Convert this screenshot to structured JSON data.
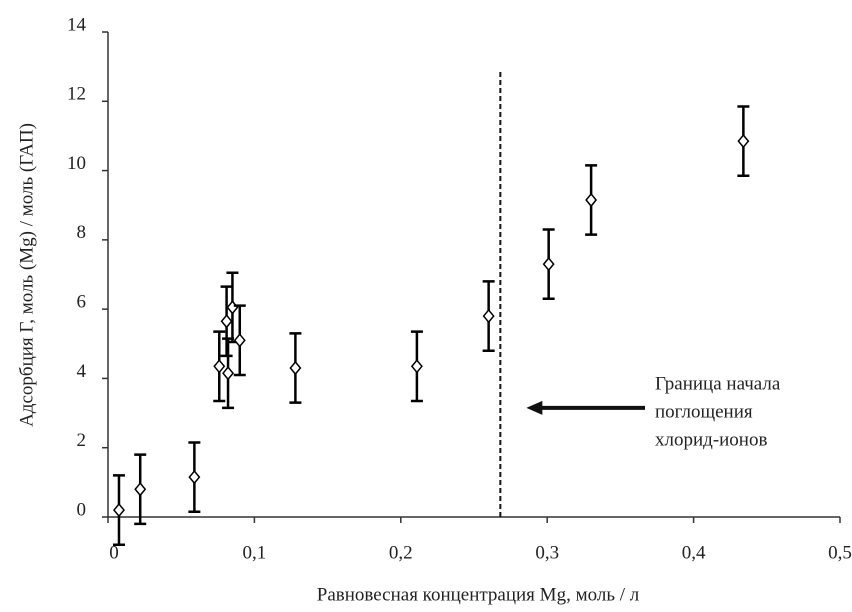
{
  "chart_data": {
    "type": "scatter",
    "xlabel": "Равновесная концентрация Mg, моль / л",
    "ylabel": "Адсорбция Г, моль (Mg) / моль (ГАП)",
    "x": [
      0.0075,
      0.022,
      0.059,
      0.076,
      0.082,
      0.081,
      0.085,
      0.09,
      0.128,
      0.211,
      0.26,
      0.301,
      0.33,
      0.434
    ],
    "values": [
      0.2,
      0.8,
      1.15,
      4.35,
      4.15,
      5.65,
      6.05,
      5.1,
      4.3,
      4.35,
      5.8,
      7.3,
      9.15,
      10.85
    ],
    "errors": [
      1,
      1,
      1,
      1,
      1,
      1,
      1,
      1,
      1,
      1,
      1,
      1,
      1,
      1
    ],
    "color": "#000000",
    "xlim": [
      0,
      0.5
    ],
    "ylim": [
      0,
      14
    ],
    "xticks": [
      0,
      {
        "value": 0.1,
        "label": "0,1"
      },
      {
        "value": 0.2,
        "label": "0,2"
      },
      {
        "value": 0.3,
        "label": "0,3"
      },
      {
        "value": 0.4,
        "label": "0,4"
      },
      {
        "value": 0.5,
        "label": "0,5"
      }
    ],
    "yticks": [
      0,
      2,
      4,
      6,
      8,
      10,
      12,
      14
    ],
    "threshold": {
      "x": 0.268,
      "ytop": 12.9,
      "arrow_y": 3.15,
      "text": [
        "Граница начала",
        "поглощения",
        "хлорид-ионов"
      ]
    }
  }
}
